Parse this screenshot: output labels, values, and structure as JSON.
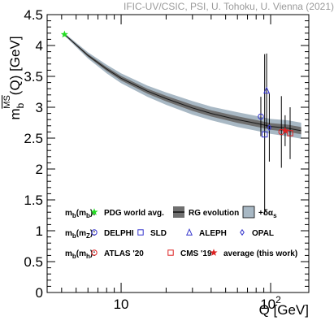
{
  "credit": "IFIC-UV/CSIC, PSI, U. Tohoku, U. Vienna (2021)",
  "chart_data": {
    "type": "scatter",
    "title": "",
    "xlabel": "Q [GeV]",
    "ylabel": "m_b^{MS-bar}(Q) [GeV]",
    "x_scale": "log",
    "xlim": [
      3.2,
      180
    ],
    "ylim": [
      0.0,
      4.5
    ],
    "x_ticks": [
      {
        "value": 10,
        "label": "10"
      },
      {
        "value": 100,
        "label": "10",
        "exponent": "2"
      }
    ],
    "y_ticks": [
      {
        "value": 0.0,
        "label": "0"
      },
      {
        "value": 0.5,
        "label": "0.5"
      },
      {
        "value": 1.0,
        "label": "1"
      },
      {
        "value": 1.5,
        "label": "1.5"
      },
      {
        "value": 2.0,
        "label": "2"
      },
      {
        "value": 2.5,
        "label": "2.5"
      },
      {
        "value": 3.0,
        "label": "3"
      },
      {
        "value": 3.5,
        "label": "3.5"
      },
      {
        "value": 4.0,
        "label": "4"
      },
      {
        "value": 4.5,
        "label": "4.5"
      }
    ],
    "band": {
      "name": "RG evolution",
      "q": [
        4.18,
        6,
        8,
        10,
        15,
        20,
        30,
        40,
        60,
        80,
        100,
        130,
        160
      ],
      "mb": [
        4.18,
        3.84,
        3.62,
        3.47,
        3.26,
        3.14,
        2.99,
        2.9,
        2.8,
        2.74,
        2.69,
        2.66,
        2.62
      ],
      "width": [
        0.02,
        0.05,
        0.07,
        0.08,
        0.09,
        0.1,
        0.11,
        0.11,
        0.12,
        0.12,
        0.12,
        0.13,
        0.13
      ]
    },
    "series": [
      {
        "name": "PDG world avg.",
        "marker": "star-filled",
        "color": "#22dd22",
        "points": [
          {
            "x": 4.18,
            "y": 4.18,
            "err": 0.03
          }
        ]
      },
      {
        "name": "DELPHI",
        "marker": "circle-open",
        "color": "#3333cc",
        "points": [
          {
            "x": 86,
            "y": 2.85,
            "err": 0.32
          }
        ]
      },
      {
        "name": "SLD",
        "marker": "square-open",
        "color": "#3333cc",
        "points": [
          {
            "x": 91.2,
            "y": 2.56,
            "err": 1.3
          }
        ]
      },
      {
        "name": "ALEPH",
        "marker": "triangle-open",
        "color": "#3333cc",
        "points": [
          {
            "x": 94,
            "y": 3.27,
            "err": 0.6
          }
        ]
      },
      {
        "name": "OPAL",
        "marker": "diamond-open",
        "color": "#3333cc",
        "points": [
          {
            "x": 98,
            "y": 2.67,
            "err": 0.55
          }
        ]
      },
      {
        "name": "ATLAS '20",
        "marker": "circle-open",
        "color": "#dd2222",
        "points": [
          {
            "x": 118,
            "y": 2.6,
            "err": 0.58
          }
        ]
      },
      {
        "name": "CMS '19",
        "marker": "square-open",
        "color": "#dd2222",
        "points": [
          {
            "x": 135,
            "y": 2.58,
            "err": 0.42
          }
        ]
      },
      {
        "name": "average (this work)",
        "marker": "star-filled",
        "color": "#dd2222",
        "points": [
          {
            "x": 125,
            "y": 2.62,
            "err": 0.25
          }
        ]
      }
    ],
    "legend": {
      "placement": "bottom",
      "rows": [
        {
          "head": "m_b(m_b):",
          "entries": [
            {
              "text": "PDG world avg.",
              "marker": "star-filled",
              "color": "#22dd22"
            },
            {
              "text": "RG evolution",
              "marker": "band-line",
              "color": "#666666"
            },
            {
              "text": "+δα_s",
              "marker": "band-box",
              "color": "#a8b8c4"
            }
          ]
        },
        {
          "head": "m_b(m_Z):",
          "entries": [
            {
              "text": "DELPHI",
              "marker": "circle-open",
              "color": "#3333cc"
            },
            {
              "text": "SLD",
              "marker": "square-open",
              "color": "#3333cc"
            },
            {
              "text": "ALEPH",
              "marker": "triangle-open",
              "color": "#3333cc"
            },
            {
              "text": "OPAL",
              "marker": "diamond-open",
              "color": "#3333cc"
            }
          ]
        },
        {
          "head": "m_b(m_h):",
          "entries": [
            {
              "text": "ATLAS '20",
              "marker": "circle-open",
              "color": "#dd2222"
            },
            {
              "text": "CMS '19",
              "marker": "square-open",
              "color": "#dd2222"
            },
            {
              "text": "average (this work)",
              "marker": "star-filled",
              "color": "#dd2222"
            }
          ]
        }
      ]
    }
  }
}
